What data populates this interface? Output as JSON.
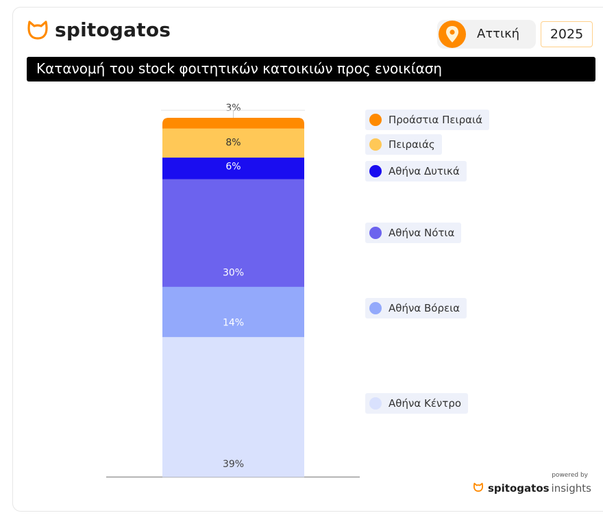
{
  "brand": {
    "name": "spitogatos",
    "accent": "#ff8a00",
    "logo_icon": "cat-head-icon"
  },
  "filters": {
    "region": "Αττική",
    "region_icon": "location-pin-icon",
    "year": "2025"
  },
  "title": "Κατανομή του stock φοιτητικών κατοικιών προς ενοικίαση",
  "footer": {
    "powered_by": "powered by",
    "brand_bold": "spitogatos",
    "brand_light": "insights"
  },
  "chart_data": {
    "type": "bar",
    "stacked": true,
    "title": "Κατανομή του stock φοιτητικών κατοικιών προς ενοικίαση",
    "unit": "%",
    "ylim": [
      0,
      100
    ],
    "grid": false,
    "legend_position": "right",
    "series": [
      {
        "name": "Αθήνα Κέντρο",
        "value": 39,
        "label": "39%",
        "color": "#d9e1fd"
      },
      {
        "name": "Αθήνα Βόρεια",
        "value": 14,
        "label": "14%",
        "color": "#93a9fb"
      },
      {
        "name": "Αθήνα Νότια",
        "value": 30,
        "label": "30%",
        "color": "#6c63ee"
      },
      {
        "name": "Αθήνα Δυτικά",
        "value": 6,
        "label": "6%",
        "color": "#1a0df0"
      },
      {
        "name": "Πειραιάς",
        "value": 8,
        "label": "8%",
        "color": "#ffc857"
      },
      {
        "name": "Προάστια Πειραιά",
        "value": 3,
        "label": "3%",
        "color": "#ff8a00"
      }
    ]
  }
}
